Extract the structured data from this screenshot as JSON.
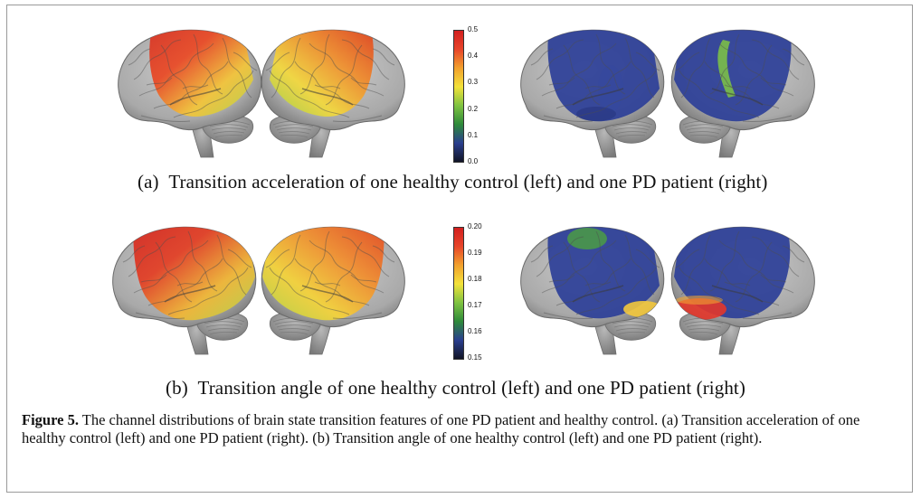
{
  "figure": {
    "panel_a": {
      "letter": "(a)",
      "caption": "Transition acceleration of one healthy control (left) and one PD patient (right)",
      "colorbar": {
        "ticks": [
          "0.5",
          "0.4",
          "0.3",
          "0.2",
          "0.1",
          "0.0"
        ],
        "colors": [
          "#d21f1f",
          "#e7452a",
          "#f2a12d",
          "#f3e23a",
          "#7fc341",
          "#2e8a3a",
          "#2a3f8f",
          "#111426"
        ]
      },
      "brains": [
        {
          "group": "healthy",
          "view": "left-lateral",
          "heat_colors": [
            "#d83424",
            "#e94a26",
            "#f3c43a",
            "#b8d34a"
          ]
        },
        {
          "group": "healthy",
          "view": "right-lateral",
          "heat_colors": [
            "#e0431f",
            "#ef8a2c",
            "#f3d83e",
            "#a2cf48"
          ]
        },
        {
          "group": "pd",
          "view": "left-lateral",
          "heat_colors": [
            "#2c3f98",
            "#34479f",
            "#26357f"
          ]
        },
        {
          "group": "pd",
          "view": "right-lateral",
          "heat_colors": [
            "#2c3f98",
            "#3a8a4a",
            "#7fc543"
          ]
        }
      ]
    },
    "panel_b": {
      "letter": "(b)",
      "caption": "Transition angle of one healthy control (left) and one PD patient (right)",
      "colorbar": {
        "ticks": [
          "0.20",
          "0.19",
          "0.18",
          "0.17",
          "0.16",
          "0.15"
        ],
        "colors": [
          "#d21f1f",
          "#e7452a",
          "#f2a12d",
          "#f3e23a",
          "#7fc341",
          "#2e8a3a",
          "#2a3f8f",
          "#111426"
        ]
      },
      "brains": [
        {
          "group": "healthy",
          "view": "left-lateral",
          "heat_colors": [
            "#d42a22",
            "#e23f25",
            "#f0b636",
            "#b9d64b"
          ]
        },
        {
          "group": "healthy",
          "view": "right-lateral",
          "heat_colors": [
            "#e44a22",
            "#f08b2e",
            "#f4d23a",
            "#b6d447"
          ]
        },
        {
          "group": "pd",
          "view": "left-lateral",
          "heat_colors": [
            "#2c3f98",
            "#4b9c44",
            "#f3c83c"
          ]
        },
        {
          "group": "pd",
          "view": "right-lateral",
          "heat_colors": [
            "#2c3f98",
            "#e3362a",
            "#f0a332"
          ]
        }
      ]
    },
    "caption": {
      "label": "Figure 5.",
      "text": " The channel distributions of brain state transition features of one PD patient and healthy control. (a) Transition acceleration of one healthy control (left) and one PD patient (right). (b) Transition angle of one healthy control (left) and one PD patient (right)."
    }
  }
}
